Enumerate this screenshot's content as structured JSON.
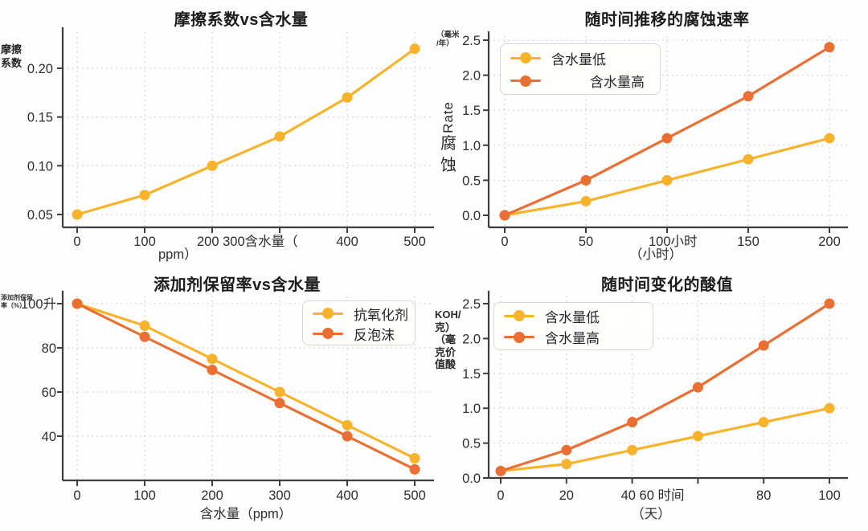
{
  "figure": {
    "background": "#fefefe"
  },
  "colors": {
    "series_yellow": "#F7B32C",
    "series_orange": "#E96F33",
    "axis": "#3d3d3d",
    "grid": "#d9d9d9",
    "tick_text": "#2e2e2e",
    "title_text": "#1c1c1c",
    "legend_border": "#d8d8cf",
    "legend_bg": "#fffffe"
  },
  "chart_data": [
    {
      "id": "friction",
      "type": "line",
      "title": "摩擦系数vs含水量",
      "ylabel_lines": [
        "摩擦",
        "系数"
      ],
      "xlabel_below": "ppm）",
      "grid": true,
      "legend_position": "none",
      "x": [
        0,
        100,
        200,
        300,
        400,
        500
      ],
      "xlim": [
        -25,
        525
      ],
      "ylim": [
        0.037,
        0.235
      ],
      "series": [
        {
          "name": "摩擦系数",
          "color": "#F7B32C",
          "values": [
            0.05,
            0.07,
            0.1,
            0.13,
            0.17,
            0.22
          ]
        }
      ],
      "yticks": [
        {
          "v": 0.05,
          "label": "0.05"
        },
        {
          "v": 0.1,
          "label": "0.10"
        },
        {
          "v": 0.15,
          "label": "0.15"
        },
        {
          "v": 0.2,
          "label": "0.20"
        }
      ],
      "xticks": [
        {
          "v": 0,
          "label": "0"
        },
        {
          "v": 100,
          "label": "100"
        },
        {
          "v": 200,
          "label": "200 300含水量（",
          "anchor": "start",
          "dx": -19
        },
        {
          "v": 300,
          "label": ""
        },
        {
          "v": 400,
          "label": "400"
        },
        {
          "v": 500,
          "label": "500"
        }
      ]
    },
    {
      "id": "corrosion",
      "type": "line",
      "title": "随时间推移的腐蚀速率",
      "unit_lines": [
        "（毫米",
        "/年）"
      ],
      "ylabel_rotated": "Rate",
      "ylabel_upright": [
        "腐",
        "蚀"
      ],
      "xlabel_below": "（小时）",
      "grid": true,
      "legend_position": "upper-left",
      "legend": [
        "含水量低",
        "含水量高"
      ],
      "x": [
        0,
        50,
        100,
        150,
        200
      ],
      "xlim": [
        -10,
        212
      ],
      "ylim": [
        -0.18,
        2.55
      ],
      "series": [
        {
          "name": "含水量低",
          "color": "#F7B32C",
          "values": [
            0.0,
            0.2,
            0.5,
            0.8,
            1.1
          ]
        },
        {
          "name": "含水量高",
          "color": "#E96F33",
          "values": [
            0.0,
            0.5,
            1.1,
            1.7,
            2.4
          ]
        }
      ],
      "yticks": [
        {
          "v": 0.0,
          "label": "0.0"
        },
        {
          "v": 0.5,
          "label": "0.5"
        },
        {
          "v": 1.0,
          "label": "1.0"
        },
        {
          "v": 1.5,
          "label": "1.5"
        },
        {
          "v": 2.0,
          "label": "2.0"
        },
        {
          "v": 2.5,
          "label": "2.5"
        }
      ],
      "xticks": [
        {
          "v": 0,
          "label": "0"
        },
        {
          "v": 50,
          "label": "50"
        },
        {
          "v": 100,
          "label": "100小时",
          "anchor": "start",
          "dx": -23
        },
        {
          "v": 150,
          "label": "150"
        },
        {
          "v": 200,
          "label": "200"
        }
      ]
    },
    {
      "id": "retention",
      "type": "line",
      "title": "添加剂保留率vs含水量",
      "ylabel_small_lines": [
        "添加剂保留",
        "率（%）"
      ],
      "xlabel_below": "含水量（ppm）",
      "grid": true,
      "legend_position": "upper-right",
      "legend": [
        "抗氧化剂",
        "反泡沫"
      ],
      "x": [
        0,
        100,
        200,
        300,
        400,
        500
      ],
      "xlim": [
        -25,
        525
      ],
      "ylim": [
        20,
        104
      ],
      "series": [
        {
          "name": "抗氧化剂",
          "color": "#F7B32C",
          "values": [
            100,
            90,
            75,
            60,
            45,
            30
          ]
        },
        {
          "name": "反泡沫",
          "color": "#E96F33",
          "values": [
            100,
            85,
            70,
            55,
            40,
            25
          ]
        }
      ],
      "yticks": [
        {
          "v": 100,
          "label": "100升"
        },
        {
          "v": 80,
          "label": "80"
        },
        {
          "v": 60,
          "label": "60"
        },
        {
          "v": 40,
          "label": "40"
        }
      ],
      "xticks": [
        {
          "v": 0,
          "label": "0"
        },
        {
          "v": 100,
          "label": "100"
        },
        {
          "v": 200,
          "label": "200"
        },
        {
          "v": 300,
          "label": "300"
        },
        {
          "v": 400,
          "label": "400"
        },
        {
          "v": 500,
          "label": "500"
        }
      ]
    },
    {
      "id": "acid",
      "type": "line",
      "title": "随时间变化的酸值",
      "ylabel_small_lines": [
        "KOH/",
        "克）",
        "（毫",
        "克价",
        "值酸"
      ],
      "xlabel_below": "（天）",
      "grid": true,
      "legend_position": "upper-left",
      "legend": [
        "含水量低",
        "含水量高"
      ],
      "x": [
        0,
        20,
        40,
        60,
        80,
        100
      ],
      "xlim": [
        -5,
        106
      ],
      "ylim": [
        0,
        2.6
      ],
      "series": [
        {
          "name": "含水量低",
          "color": "#F7B32C",
          "values": [
            0.1,
            0.2,
            0.4,
            0.6,
            0.8,
            1.0
          ]
        },
        {
          "name": "含水量高",
          "color": "#E96F33",
          "values": [
            0.1,
            0.4,
            0.8,
            1.3,
            1.9,
            2.5
          ]
        }
      ],
      "yticks": [
        {
          "v": 0.0,
          "label": "0.0"
        },
        {
          "v": 0.5,
          "label": "0.5"
        },
        {
          "v": 1.0,
          "label": "1.0"
        },
        {
          "v": 1.5,
          "label": "1.5"
        },
        {
          "v": 2.0,
          "label": "2.0"
        },
        {
          "v": 2.5,
          "label": "2.5"
        }
      ],
      "xticks": [
        {
          "v": 0,
          "label": "0"
        },
        {
          "v": 20,
          "label": "20"
        },
        {
          "v": 40,
          "label": "40 60 时间",
          "anchor": "start",
          "dx": -14
        },
        {
          "v": 60,
          "label": ""
        },
        {
          "v": 80,
          "label": "80"
        },
        {
          "v": 100,
          "label": "100"
        }
      ]
    }
  ]
}
